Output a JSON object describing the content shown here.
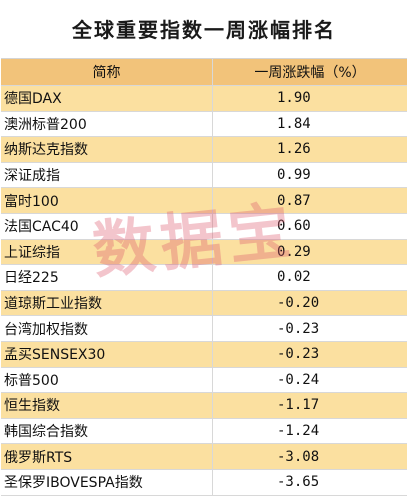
{
  "title": "全球重要指数一周涨幅排名",
  "columns": {
    "name": "简称",
    "value": "一周涨跌幅（%）"
  },
  "rows": [
    {
      "name": "德国DAX",
      "value": "1.90"
    },
    {
      "name": "澳洲标普200",
      "value": "1.84"
    },
    {
      "name": "纳斯达克指数",
      "value": "1.26"
    },
    {
      "name": "深证成指",
      "value": "0.99"
    },
    {
      "name": "富时100",
      "value": "0.87"
    },
    {
      "name": "法国CAC40",
      "value": "0.60"
    },
    {
      "name": "上证综指",
      "value": "0.29"
    },
    {
      "name": "日经225",
      "value": "0.02"
    },
    {
      "name": "道琼斯工业指数",
      "value": "-0.20"
    },
    {
      "name": "台湾加权指数",
      "value": "-0.23"
    },
    {
      "name": "孟买SENSEX30",
      "value": "-0.23"
    },
    {
      "name": "标普500",
      "value": "-0.24"
    },
    {
      "name": "恒生指数",
      "value": "-1.17"
    },
    {
      "name": "韩国综合指数",
      "value": "-1.24"
    },
    {
      "name": "俄罗斯RTS",
      "value": "-3.08"
    },
    {
      "name": "圣保罗IBOVESPA指数",
      "value": "-3.65"
    }
  ],
  "watermark": "数据宝",
  "colors": {
    "header": "#f2c37a",
    "stripe": "#fbe0a0",
    "watermark": "#dc5a6e"
  }
}
